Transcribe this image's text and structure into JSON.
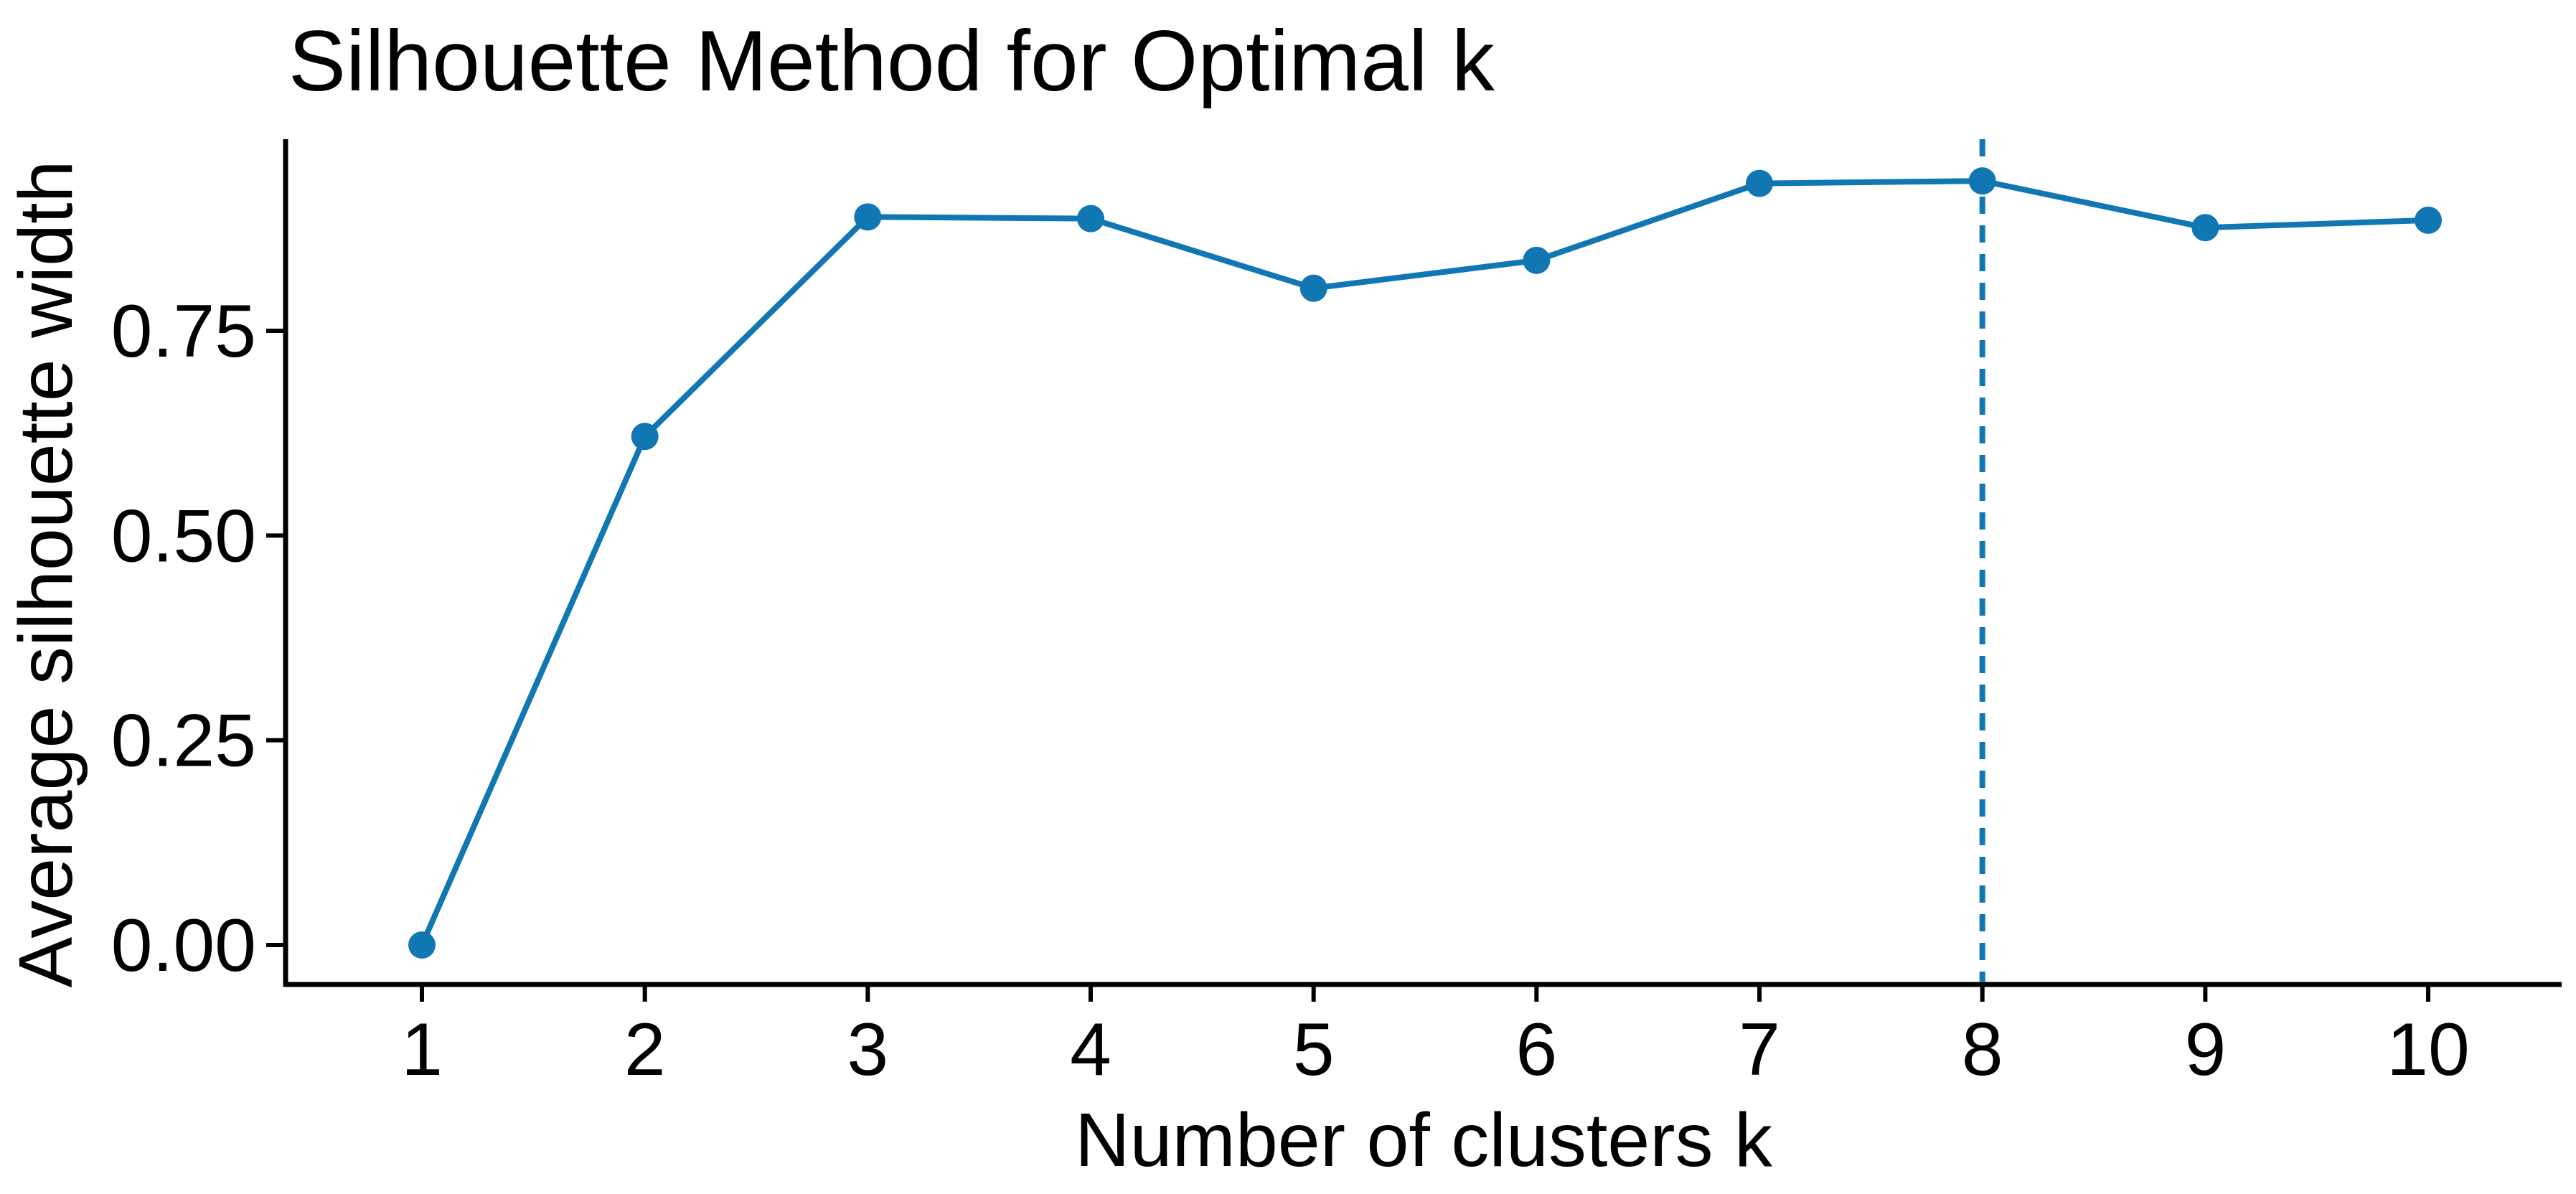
{
  "chart_data": {
    "type": "line",
    "title": "Silhouette Method for Optimal k",
    "xlabel": "Number of clusters k",
    "ylabel": "Average silhouette width",
    "series": [
      {
        "name": "average-silhouette-width",
        "x": [
          1,
          2,
          3,
          4,
          5,
          6,
          7,
          8,
          9,
          10
        ],
        "y": [
          0.0,
          0.621,
          0.889,
          0.887,
          0.802,
          0.836,
          0.93,
          0.933,
          0.876,
          0.885
        ]
      }
    ],
    "x_tick_labels": [
      "1",
      "2",
      "3",
      "4",
      "5",
      "6",
      "7",
      "8",
      "9",
      "10"
    ],
    "y_tick_labels": [
      "0.00",
      "0.25",
      "0.50",
      "0.75"
    ],
    "y_tick_values": [
      0.0,
      0.25,
      0.5,
      0.75
    ],
    "xlim": [
      1,
      10
    ],
    "ylim": [
      -0.05,
      0.98
    ],
    "grid": false,
    "legend_position": "none",
    "vline": {
      "x": 8,
      "style": "dashed",
      "meaning": "optimal k"
    },
    "optimal_k": 8,
    "colors": {
      "series_line": "#1177b3",
      "marker_fill": "#1177b3",
      "vline": "#1177b3",
      "axis": "#000000",
      "text": "#000000",
      "background": "#ffffff"
    }
  }
}
